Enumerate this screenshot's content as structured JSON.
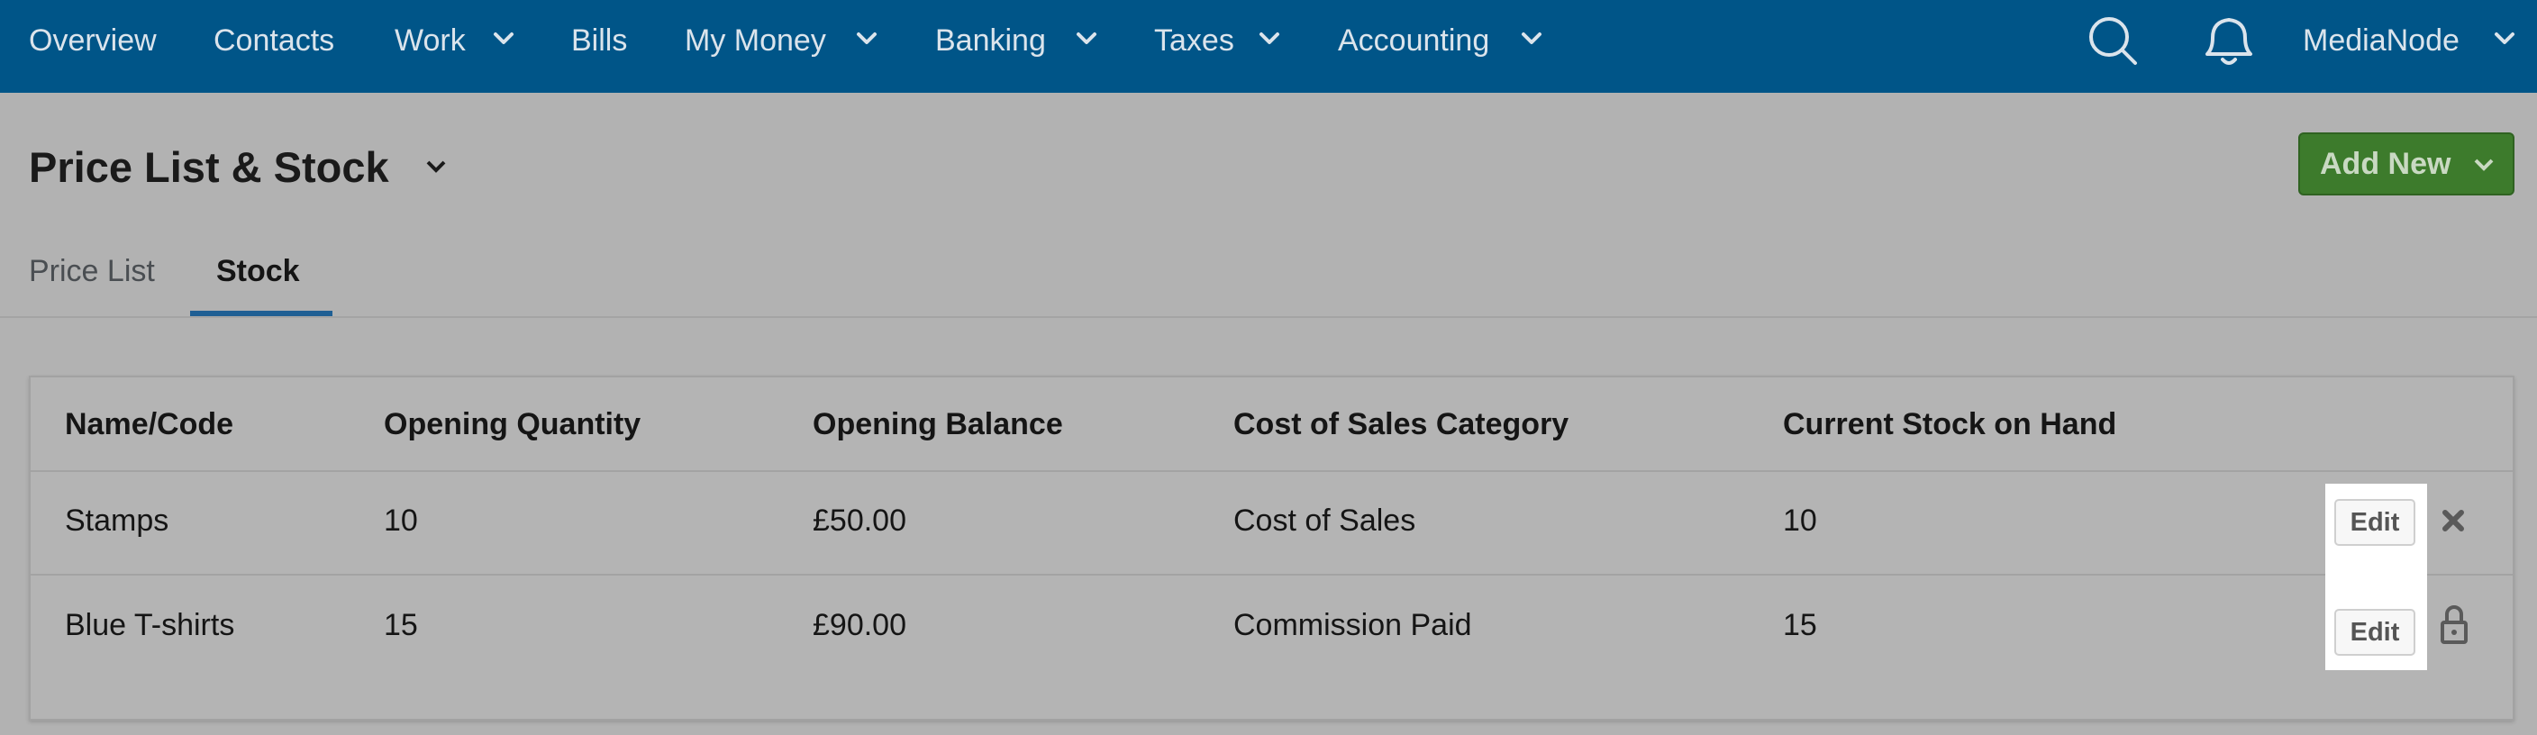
{
  "nav": {
    "items": [
      "Overview",
      "Contacts",
      "Work",
      "Bills",
      "My Money",
      "Banking",
      "Taxes",
      "Accounting"
    ],
    "user": "MediaNode"
  },
  "header": {
    "title": "Price List & Stock",
    "button": "Add New"
  },
  "tabs": [
    "Price List",
    "Stock"
  ],
  "table": {
    "columns": [
      "Name/Code",
      "Opening Quantity",
      "Opening Balance",
      "Cost of Sales Category",
      "Current Stock on Hand"
    ],
    "rows": [
      [
        "Stamps",
        "10",
        "£50.00",
        "Cost of Sales",
        "10"
      ],
      [
        "Blue T-shirts",
        "15",
        "£90.00",
        "Commission Paid",
        "15"
      ]
    ],
    "action": "Edit"
  }
}
